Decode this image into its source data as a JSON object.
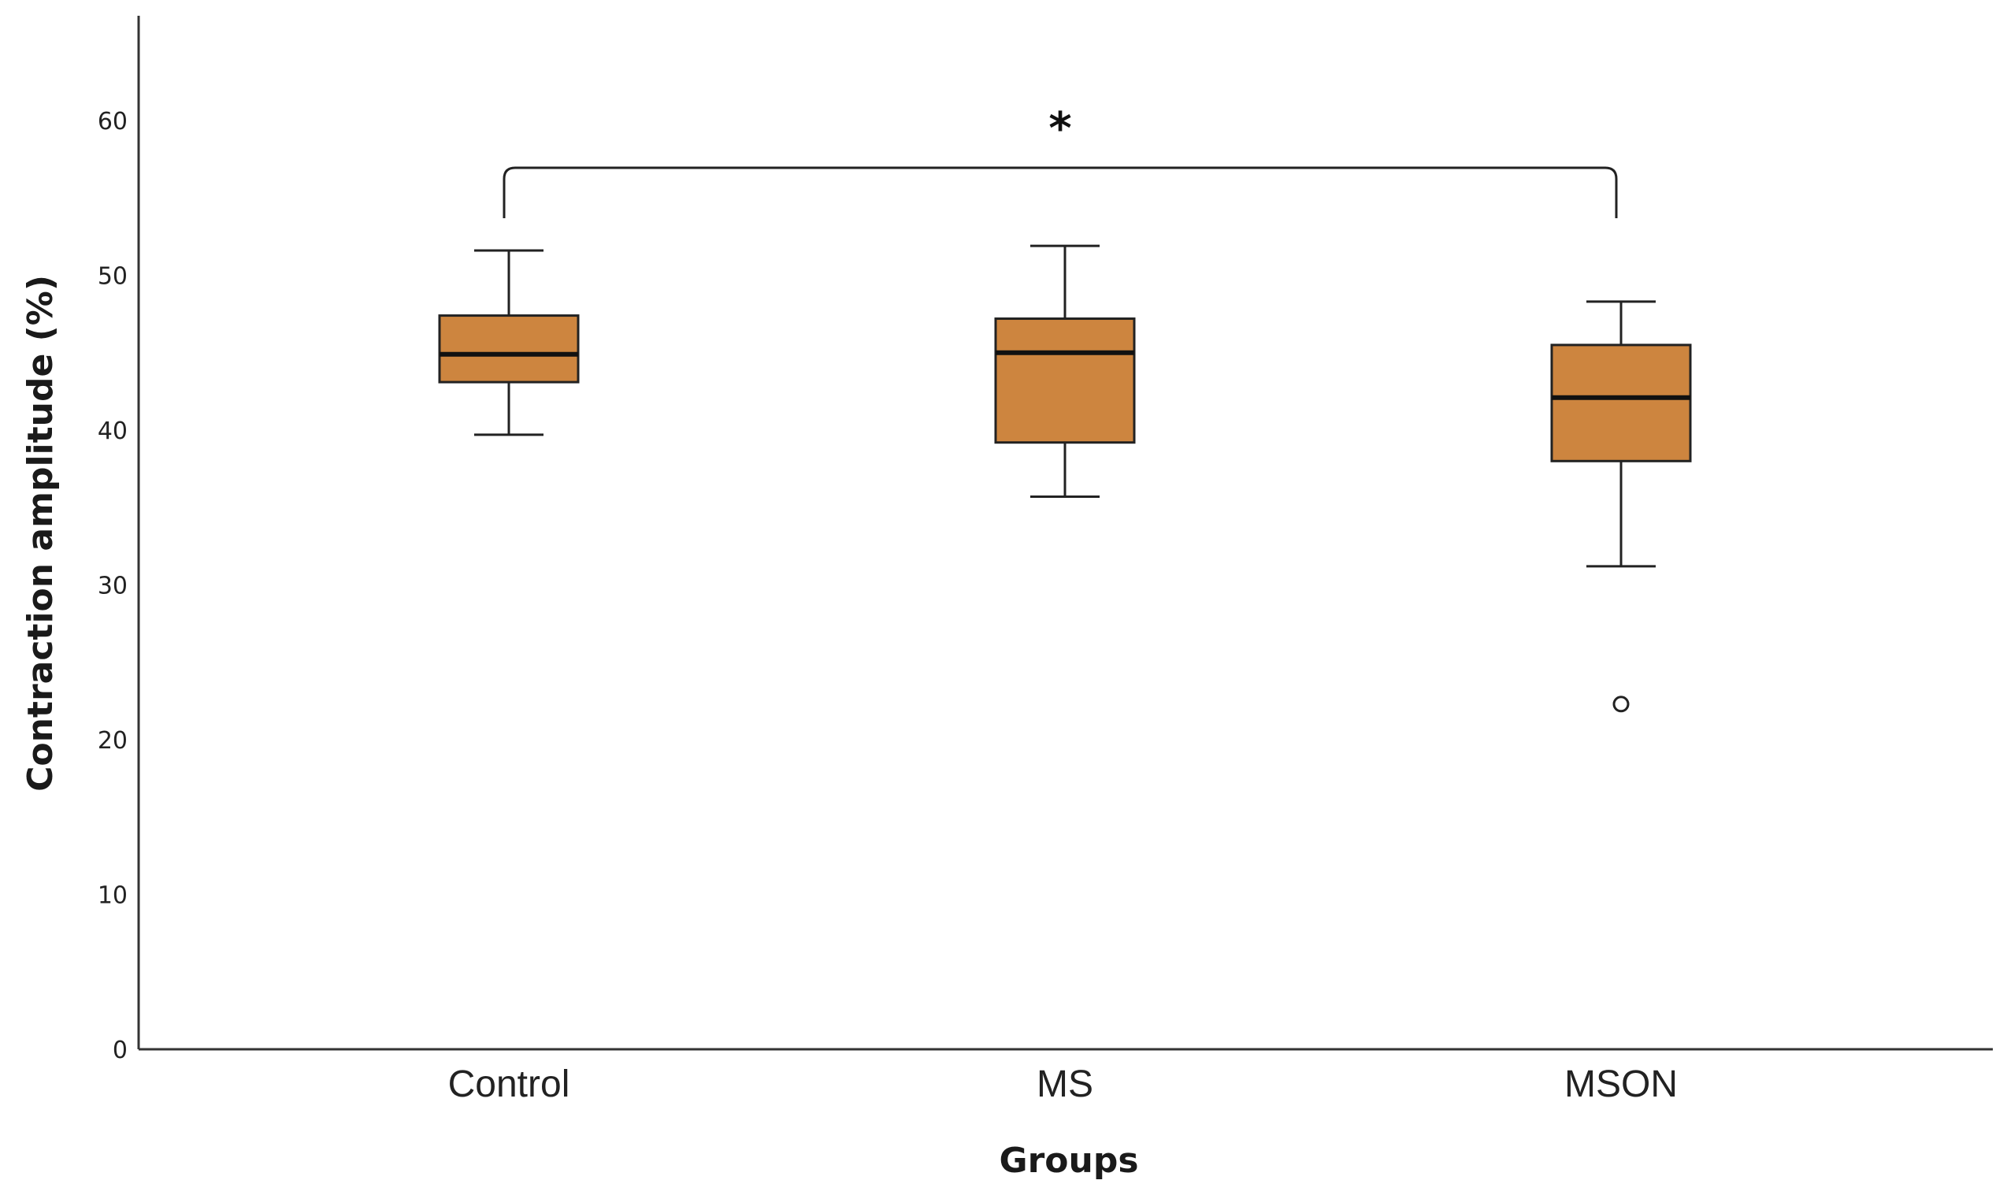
{
  "chart_data": {
    "type": "boxplot",
    "xlabel": "Groups",
    "ylabel": "Contraction amplitude (%)",
    "ylim": [
      0,
      66
    ],
    "yticks": [
      0,
      10,
      20,
      30,
      40,
      50,
      60
    ],
    "box_color": "#cd853f",
    "categories": [
      "Control",
      "MS",
      "MSON"
    ],
    "series": [
      {
        "name": "Control",
        "whisker_low": 39.7,
        "q1": 43.1,
        "median": 44.9,
        "q3": 47.4,
        "whisker_high": 51.6,
        "outliers": []
      },
      {
        "name": "MS",
        "whisker_low": 35.7,
        "q1": 39.2,
        "median": 45.0,
        "q3": 47.2,
        "whisker_high": 51.9,
        "outliers": []
      },
      {
        "name": "MSON",
        "whisker_low": 31.2,
        "q1": 38.0,
        "median": 42.1,
        "q3": 45.5,
        "whisker_high": 48.3,
        "outliers": [
          22.3
        ]
      }
    ],
    "significance": [
      {
        "from": "Control",
        "to": "MSON",
        "label": "*"
      }
    ]
  }
}
